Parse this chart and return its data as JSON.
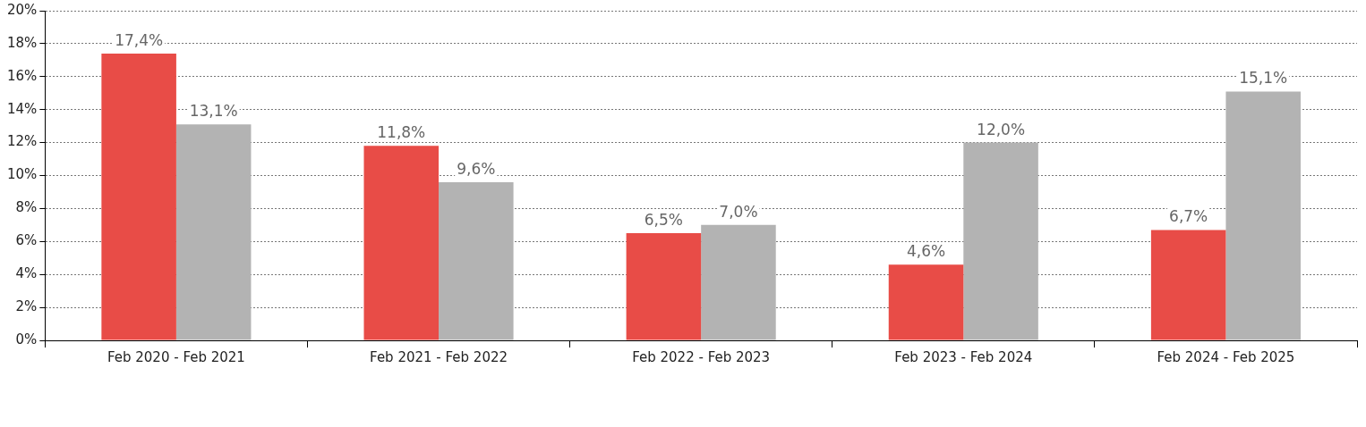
{
  "chart_data": {
    "type": "bar",
    "categories": [
      "Feb 2020 - Feb 2021",
      "Feb 2021 - Feb 2022",
      "Feb 2022 - Feb 2023",
      "Feb 2023 - Feb 2024",
      "Feb 2024 - Feb 2025"
    ],
    "series": [
      {
        "color": "#e84c47",
        "values": [
          17.4,
          11.8,
          6.5,
          4.6,
          6.7
        ],
        "value_labels": [
          "17,4%",
          "11,8%",
          "6,5%",
          "4,6%",
          "6,7%"
        ]
      },
      {
        "color": "#b3b3b3",
        "values": [
          13.1,
          9.6,
          7.0,
          12.0,
          15.1
        ],
        "value_labels": [
          "13,1%",
          "9,6%",
          "7,0%",
          "12,0%",
          "15,1%"
        ]
      }
    ],
    "ylim": [
      0,
      20
    ],
    "yticks": [
      {
        "value": 0,
        "label": "0%"
      },
      {
        "value": 2,
        "label": "2%"
      },
      {
        "value": 4,
        "label": "4%"
      },
      {
        "value": 6,
        "label": "6%"
      },
      {
        "value": 8,
        "label": "8%"
      },
      {
        "value": 10,
        "label": "10%"
      },
      {
        "value": 12,
        "label": "12%"
      },
      {
        "value": 14,
        "label": "14%"
      },
      {
        "value": 16,
        "label": "16%"
      },
      {
        "value": 18,
        "label": "18%"
      },
      {
        "value": 20,
        "label": "20%"
      }
    ],
    "grid": "y",
    "legend": false
  }
}
